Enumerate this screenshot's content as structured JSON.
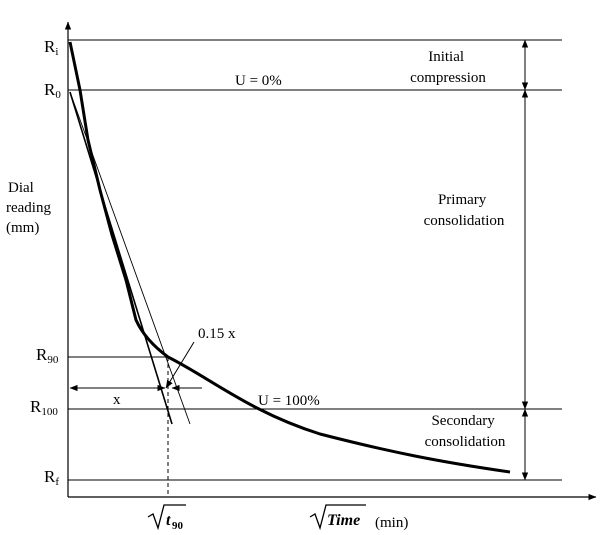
{
  "readings": {
    "ri": {
      "main": "R",
      "sub": "i"
    },
    "r0": {
      "main": "R",
      "sub": "0"
    },
    "r90": {
      "main": "R",
      "sub": "90"
    },
    "r100": {
      "main": "R",
      "sub": "100"
    },
    "rf": {
      "main": "R",
      "sub": "f"
    }
  },
  "y_axis_label": [
    "Dial",
    "reading",
    "(mm)"
  ],
  "regions": {
    "initial": [
      "Initial",
      "compression"
    ],
    "primary": [
      "Primary",
      "consolidation"
    ],
    "secondary": [
      "Secondary",
      "consolidation"
    ]
  },
  "annotations": {
    "u0": "U = 0%",
    "u100": "U = 100%",
    "offset": "0.15 x",
    "x": "x"
  },
  "x_axis": {
    "t90": "t",
    "t90_sub": "90",
    "time": "Time",
    "unit": "(min)"
  }
}
